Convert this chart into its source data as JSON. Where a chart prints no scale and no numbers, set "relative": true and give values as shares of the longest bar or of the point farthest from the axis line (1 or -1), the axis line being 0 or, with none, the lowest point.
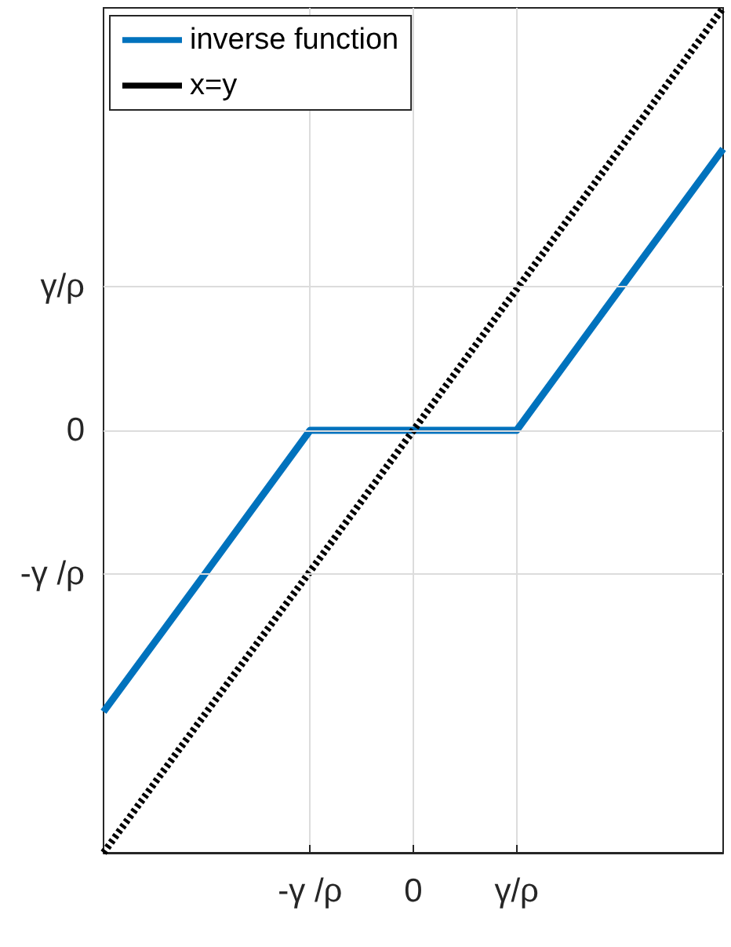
{
  "chart_data": {
    "type": "line",
    "relative": true,
    "categories": [
      null,
      null,
      "-γ /ρ",
      "0",
      "γ/ρ",
      null,
      null
    ],
    "grid": "x",
    "legend": "top left",
    "marker": "none",
    "ref_lines": [
      {
        "axis": "y",
        "value": 0.333,
        "label": "-γ /ρ",
        "color": "#dcdcdc"
      },
      {
        "axis": "y",
        "value": 0.5,
        "label": "0",
        "color": "#dcdcdc"
      },
      {
        "axis": "y",
        "value": 0.667,
        "label": "γ/ρ",
        "color": "#dcdcdc"
      }
    ],
    "series": [
      {
        "name": "inverse function",
        "color": "#0072bd",
        "line_style": "solid",
        "values": [
          0.167,
          0.333,
          0.5,
          0.5,
          0.5,
          0.667,
          0.833
        ]
      },
      {
        "name": "x=y",
        "color": "#000000",
        "line_style": "dotted",
        "values": [
          0,
          0.167,
          0.333,
          0.5,
          0.667,
          0.833,
          1
        ]
      }
    ]
  }
}
